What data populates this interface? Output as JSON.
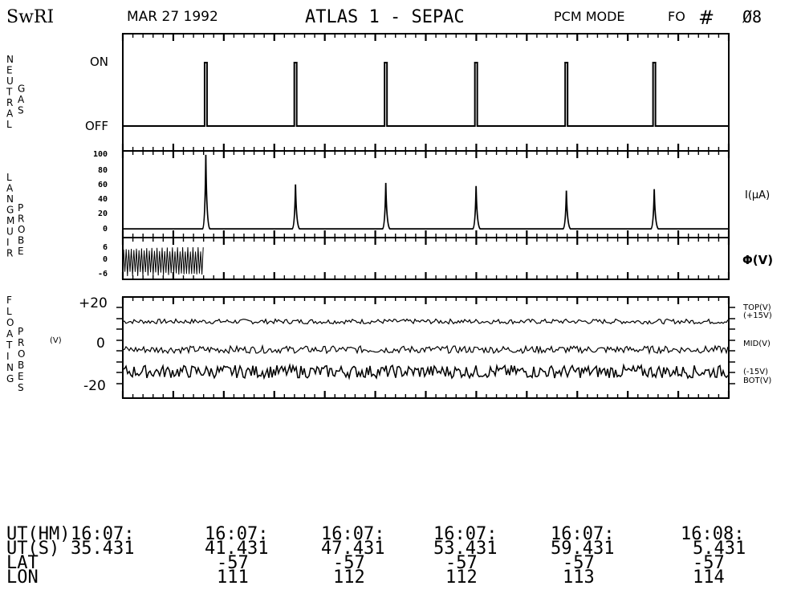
{
  "header": {
    "org": "SwRI",
    "date": "MAR 27 1992",
    "title": "ATLAS 1 - SEPAC",
    "mode": "PCM MODE",
    "fo": "FO",
    "hash": "#",
    "number": "Ø8"
  },
  "chart_data": [
    {
      "type": "line",
      "panel": "neutral-gas",
      "label_letters": [
        "N",
        "E",
        "U",
        "T",
        "R",
        "A",
        "L",
        "",
        "G",
        "A",
        "S"
      ],
      "ytick_labels": [
        "ON",
        "OFF"
      ],
      "series": [
        {
          "values_state": "OFF baseline with brief ON pulses",
          "x_relative_pulses": [
            0.137,
            0.285,
            0.434,
            0.583,
            0.732,
            0.877
          ]
        }
      ]
    },
    {
      "type": "line",
      "panel": "langmuir-current",
      "label_letters": [
        "L",
        "A",
        "N",
        "G",
        "M",
        "U",
        "I",
        "R",
        "",
        "P",
        "R",
        "O",
        "B",
        "E"
      ],
      "right_label": "I(μA)",
      "ylim": [
        0,
        100
      ],
      "ytick_labels": [
        "100",
        "80",
        "60",
        "40",
        "20",
        "0"
      ],
      "series": [
        {
          "baseline": 3,
          "spikes": [
            {
              "x_relative": 0.137,
              "value": 98
            },
            {
              "x_relative": 0.285,
              "value": 60
            },
            {
              "x_relative": 0.434,
              "value": 62
            },
            {
              "x_relative": 0.583,
              "value": 58
            },
            {
              "x_relative": 0.732,
              "value": 52
            },
            {
              "x_relative": 0.877,
              "value": 54
            }
          ]
        }
      ]
    },
    {
      "type": "line",
      "panel": "langmuir-potential",
      "right_label": "Φ(V)",
      "ylim": [
        -6,
        6
      ],
      "ytick_labels": [
        "6",
        "0",
        "-6"
      ],
      "series": [
        {
          "description_oscillation_until_x_relative": 0.133,
          "amplitude": 6
        }
      ]
    },
    {
      "type": "line",
      "panel": "floating-probes",
      "label_letters": [
        "F",
        "L",
        "O",
        "A",
        "T",
        "I",
        "N",
        "G",
        "",
        "P",
        "R",
        "O",
        "B",
        "E",
        "S"
      ],
      "unit_label": "(V)",
      "ylim": [
        -25,
        25
      ],
      "ytick_labels": [
        "+20",
        "0",
        "-20"
      ],
      "right_labels": [
        "TOP(V)",
        "(+15V)",
        "MID(V)",
        "(-15V)",
        "BOT(V)"
      ],
      "series": [
        {
          "name": "TOP(V)",
          "mean": 13,
          "noise": 0.6
        },
        {
          "name": "MID(V)",
          "mean": -1,
          "noise": 0.9
        },
        {
          "name": "BOT(V)",
          "mean": -12,
          "noise": 1.6
        }
      ]
    }
  ],
  "footer": {
    "row_labels": [
      "UT(HM)",
      "UT(S)",
      "LAT",
      "LON"
    ],
    "columns": [
      {
        "ut_hm": "16:07:",
        "ut_s": "35.431",
        "lat": "",
        "lon": ""
      },
      {
        "ut_hm": "16:07:",
        "ut_s": "41.431",
        "lat": "-57",
        "lon": "111"
      },
      {
        "ut_hm": "16:07:",
        "ut_s": "47.431",
        "lat": "-57",
        "lon": "112"
      },
      {
        "ut_hm": "16:07:",
        "ut_s": "53.431",
        "lat": "-57",
        "lon": "112"
      },
      {
        "ut_hm": "16:07:",
        "ut_s": "59.431",
        "lat": "-57",
        "lon": "113"
      },
      {
        "ut_hm": "16:08:",
        "ut_s": "5.431",
        "lat": "-57",
        "lon": "114"
      }
    ]
  }
}
